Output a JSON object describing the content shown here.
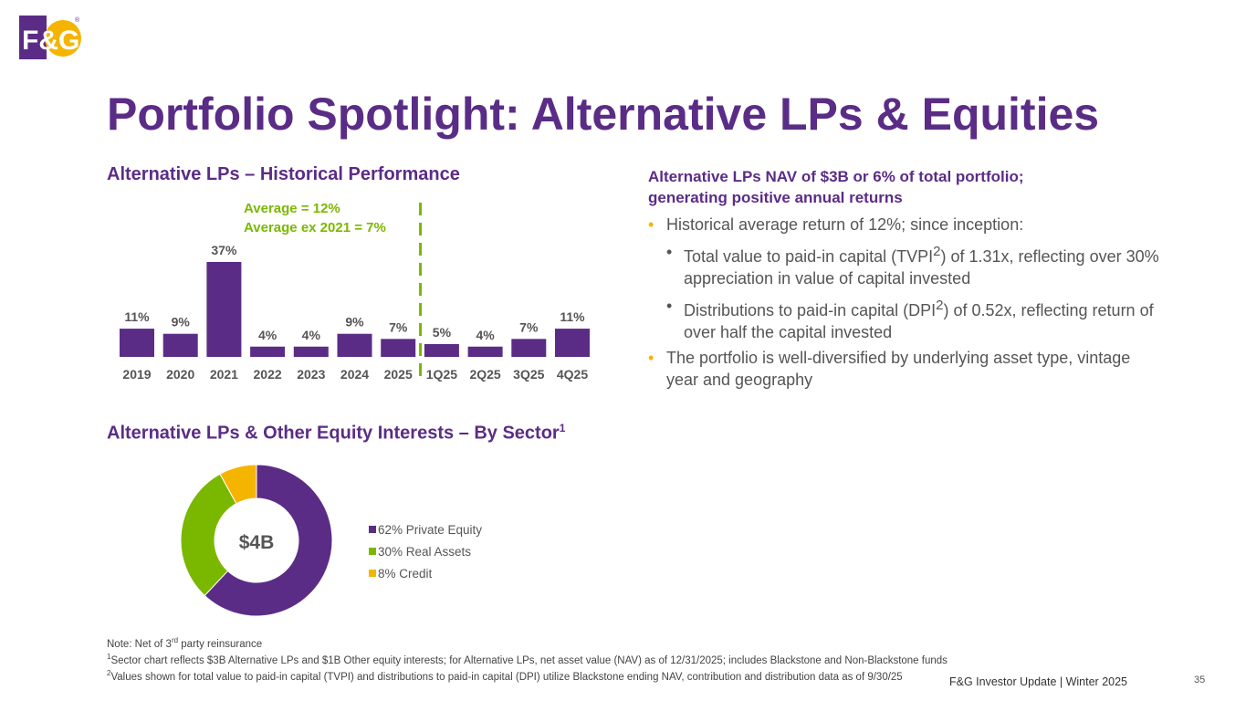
{
  "brand": {
    "logo_text": "F&G",
    "registered": "®",
    "purple": "#5b2c86",
    "gold": "#f5b400",
    "green": "#7ab800"
  },
  "title": "Portfolio Spotlight:  Alternative LPs & Equities",
  "performance": {
    "title": "Alternative LPs – Historical Performance",
    "average_line1": "Average = 12%",
    "average_line2": "Average ex 2021 = 7%"
  },
  "chart_data": [
    {
      "type": "bar",
      "title": "Alternative LPs – Historical Performance",
      "categories": [
        "2019",
        "2020",
        "2021",
        "2022",
        "2023",
        "2024",
        "2025",
        "1Q25",
        "2Q25",
        "3Q25",
        "4Q25"
      ],
      "values": [
        11,
        9,
        37,
        4,
        4,
        9,
        7,
        5,
        4,
        7,
        11
      ],
      "labels": [
        "11%",
        "9%",
        "37%",
        "4%",
        "4%",
        "9%",
        "7%",
        "5%",
        "4%",
        "7%",
        "11%"
      ],
      "divider_after_category": "2025",
      "color": "#5b2c86",
      "ylim": [
        0,
        40
      ]
    },
    {
      "type": "pie",
      "title": "Alternative LPs & Other Equity Interests – By Sector",
      "center_label": "$4B",
      "categories": [
        "Private Equity",
        "Real Assets",
        "Credit"
      ],
      "values": [
        62,
        30,
        8
      ],
      "colors": [
        "#5b2c86",
        "#7ab800",
        "#f5b400"
      ],
      "legend": [
        "62% Private Equity",
        "30% Real Assets",
        "8% Credit"
      ]
    }
  ],
  "sector": {
    "title": "Alternative LPs & Other Equity Interests – By Sector",
    "title_sup": "1"
  },
  "highlights": {
    "heading_line1": "Alternative LPs NAV of $3B or 6% of total portfolio;",
    "heading_line2": "generating positive annual returns",
    "b1": "Historical average return of 12%; since inception:",
    "b2_pre": "Total value to paid-in capital (TVPI",
    "b2_sup": "2",
    "b2_post": ") of 1.31x, reflecting over 30% appreciation in value of capital invested",
    "b3_pre": "Distributions to paid-in capital (DPI",
    "b3_sup": "2",
    "b3_post": ") of 0.52x, reflecting return of over half the capital invested",
    "b4": "The portfolio is well-diversified by underlying asset type, vintage year and geography"
  },
  "notes": {
    "n0_pre": "Note: Net of 3",
    "n0_sup": "rd",
    "n0_post": " party reinsurance",
    "n1_sup": "1",
    "n1": "Sector chart reflects $3B Alternative LPs and $1B Other equity interests; for Alternative LPs, net asset value (NAV) as of 12/31/2025; includes Blackstone and Non-Blackstone funds",
    "n2_sup": "2",
    "n2": "Values shown for total value to paid-in capital (TVPI) and distributions to paid-in capital (DPI) utilize Blackstone ending NAV, contribution and distribution data as of 9/30/25"
  },
  "footer": {
    "text": "F&G Investor Update |  Winter 2025",
    "page": "35"
  }
}
